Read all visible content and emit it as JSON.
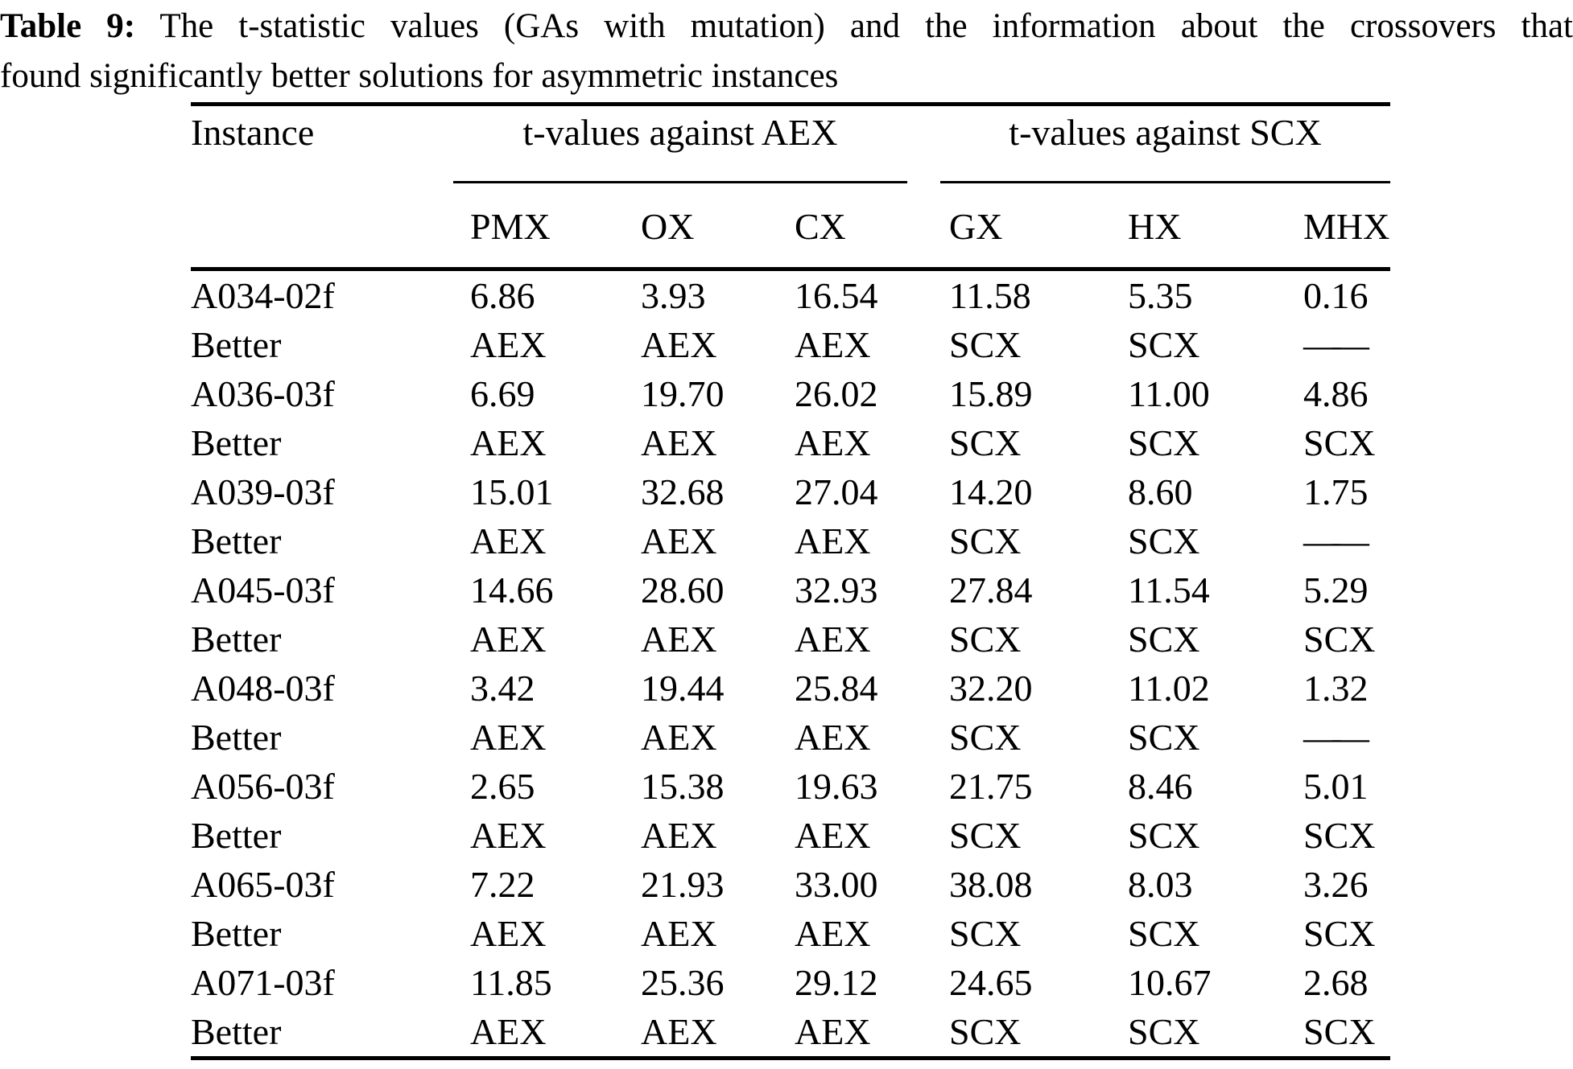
{
  "caption": {
    "label": "Table 9:",
    "line1_rest": "The t-statistic values (GAs with mutation) and the information about the crossovers that",
    "line2": "found significantly better solutions for asymmetric instances"
  },
  "table": {
    "corner_header": "Instance",
    "group_headers": [
      {
        "label": "t-values against AEX"
      },
      {
        "label": "t-values against SCX"
      }
    ],
    "columns": [
      "PMX",
      "OX",
      "CX",
      "GX",
      "HX",
      "MHX"
    ],
    "rows": [
      {
        "label": "A034-02f",
        "cells": [
          "6.86",
          "3.93",
          "16.54",
          "11.58",
          "5.35",
          "0.16"
        ]
      },
      {
        "label": "Better",
        "cells": [
          "AEX",
          "AEX",
          "AEX",
          "SCX",
          "SCX",
          "——"
        ]
      },
      {
        "label": "A036-03f",
        "cells": [
          "6.69",
          "19.70",
          "26.02",
          "15.89",
          "11.00",
          "4.86"
        ]
      },
      {
        "label": "Better",
        "cells": [
          "AEX",
          "AEX",
          "AEX",
          "SCX",
          "SCX",
          "SCX"
        ]
      },
      {
        "label": "A039-03f",
        "cells": [
          "15.01",
          "32.68",
          "27.04",
          "14.20",
          "8.60",
          "1.75"
        ]
      },
      {
        "label": "Better",
        "cells": [
          "AEX",
          "AEX",
          "AEX",
          "SCX",
          "SCX",
          "——"
        ]
      },
      {
        "label": "A045-03f",
        "cells": [
          "14.66",
          "28.60",
          "32.93",
          "27.84",
          "11.54",
          "5.29"
        ]
      },
      {
        "label": "Better",
        "cells": [
          "AEX",
          "AEX",
          "AEX",
          "SCX",
          "SCX",
          "SCX"
        ]
      },
      {
        "label": "A048-03f",
        "cells": [
          "3.42",
          "19.44",
          "25.84",
          "32.20",
          "11.02",
          "1.32"
        ]
      },
      {
        "label": "Better",
        "cells": [
          "AEX",
          "AEX",
          "AEX",
          "SCX",
          "SCX",
          "——"
        ]
      },
      {
        "label": "A056-03f",
        "cells": [
          "2.65",
          "15.38",
          "19.63",
          "21.75",
          "8.46",
          "5.01"
        ]
      },
      {
        "label": "Better",
        "cells": [
          "AEX",
          "AEX",
          "AEX",
          "SCX",
          "SCX",
          "SCX"
        ]
      },
      {
        "label": "A065-03f",
        "cells": [
          "7.22",
          "21.93",
          "33.00",
          "38.08",
          "8.03",
          "3.26"
        ]
      },
      {
        "label": "Better",
        "cells": [
          "AEX",
          "AEX",
          "AEX",
          "SCX",
          "SCX",
          "SCX"
        ]
      },
      {
        "label": "A071-03f",
        "cells": [
          "11.85",
          "25.36",
          "29.12",
          "24.65",
          "10.67",
          "2.68"
        ]
      },
      {
        "label": "Better",
        "cells": [
          "AEX",
          "AEX",
          "AEX",
          "SCX",
          "SCX",
          "SCX"
        ]
      }
    ],
    "colors": {
      "text": "#000000",
      "background": "#ffffff",
      "rule": "#000000"
    }
  }
}
